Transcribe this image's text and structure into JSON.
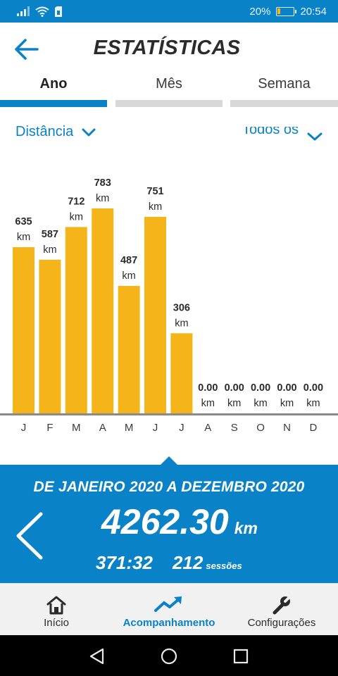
{
  "status_bar": {
    "battery_percent": "20%",
    "battery_level": 0.2,
    "time": "20:54",
    "icons": [
      "signal-icon",
      "wifi-icon",
      "sim-icon",
      "battery-icon"
    ]
  },
  "header": {
    "title": "ESTATÍSTICAS",
    "back_icon": "arrow-left-icon"
  },
  "tabs": [
    {
      "label": "Ano",
      "active": true
    },
    {
      "label": "Mês",
      "active": false
    },
    {
      "label": "Semana",
      "active": false
    }
  ],
  "filters": {
    "metric": "Distância",
    "activity": "Todos os"
  },
  "chart_data": {
    "type": "bar",
    "categories": [
      "J",
      "F",
      "M",
      "A",
      "M",
      "J",
      "J",
      "A",
      "S",
      "O",
      "N",
      "D"
    ],
    "values": [
      635,
      587,
      712,
      783,
      487,
      751,
      306,
      0,
      0,
      0,
      0,
      0
    ],
    "value_labels": [
      "635",
      "587",
      "712",
      "783",
      "487",
      "751",
      "306",
      "0.00",
      "0.00",
      "0.00",
      "0.00",
      "0.00"
    ],
    "unit": "km",
    "ylim": [
      0,
      800
    ],
    "bar_color": "#f5b51a",
    "grid": false
  },
  "summary": {
    "period": "DE JANEIRO 2020 A DEZEMBRO 2020",
    "total": "4262.30",
    "total_unit": "km",
    "duration": "371:32",
    "sessions": "212",
    "sessions_label": "sessões"
  },
  "bottom_nav": [
    {
      "label": "Início",
      "icon": "home-icon",
      "active": false
    },
    {
      "label": "Acompanhamento",
      "icon": "trend-up-icon",
      "active": true
    },
    {
      "label": "Configurações",
      "icon": "wrench-icon",
      "active": false
    }
  ],
  "system_nav": [
    "back-triangle-icon",
    "home-circle-icon",
    "recents-square-icon"
  ],
  "colors": {
    "accent": "#0a82c8",
    "bar": "#f5b51a",
    "tab_inactive": "#d8d8d8",
    "nav_bg": "#f1f1f1"
  }
}
